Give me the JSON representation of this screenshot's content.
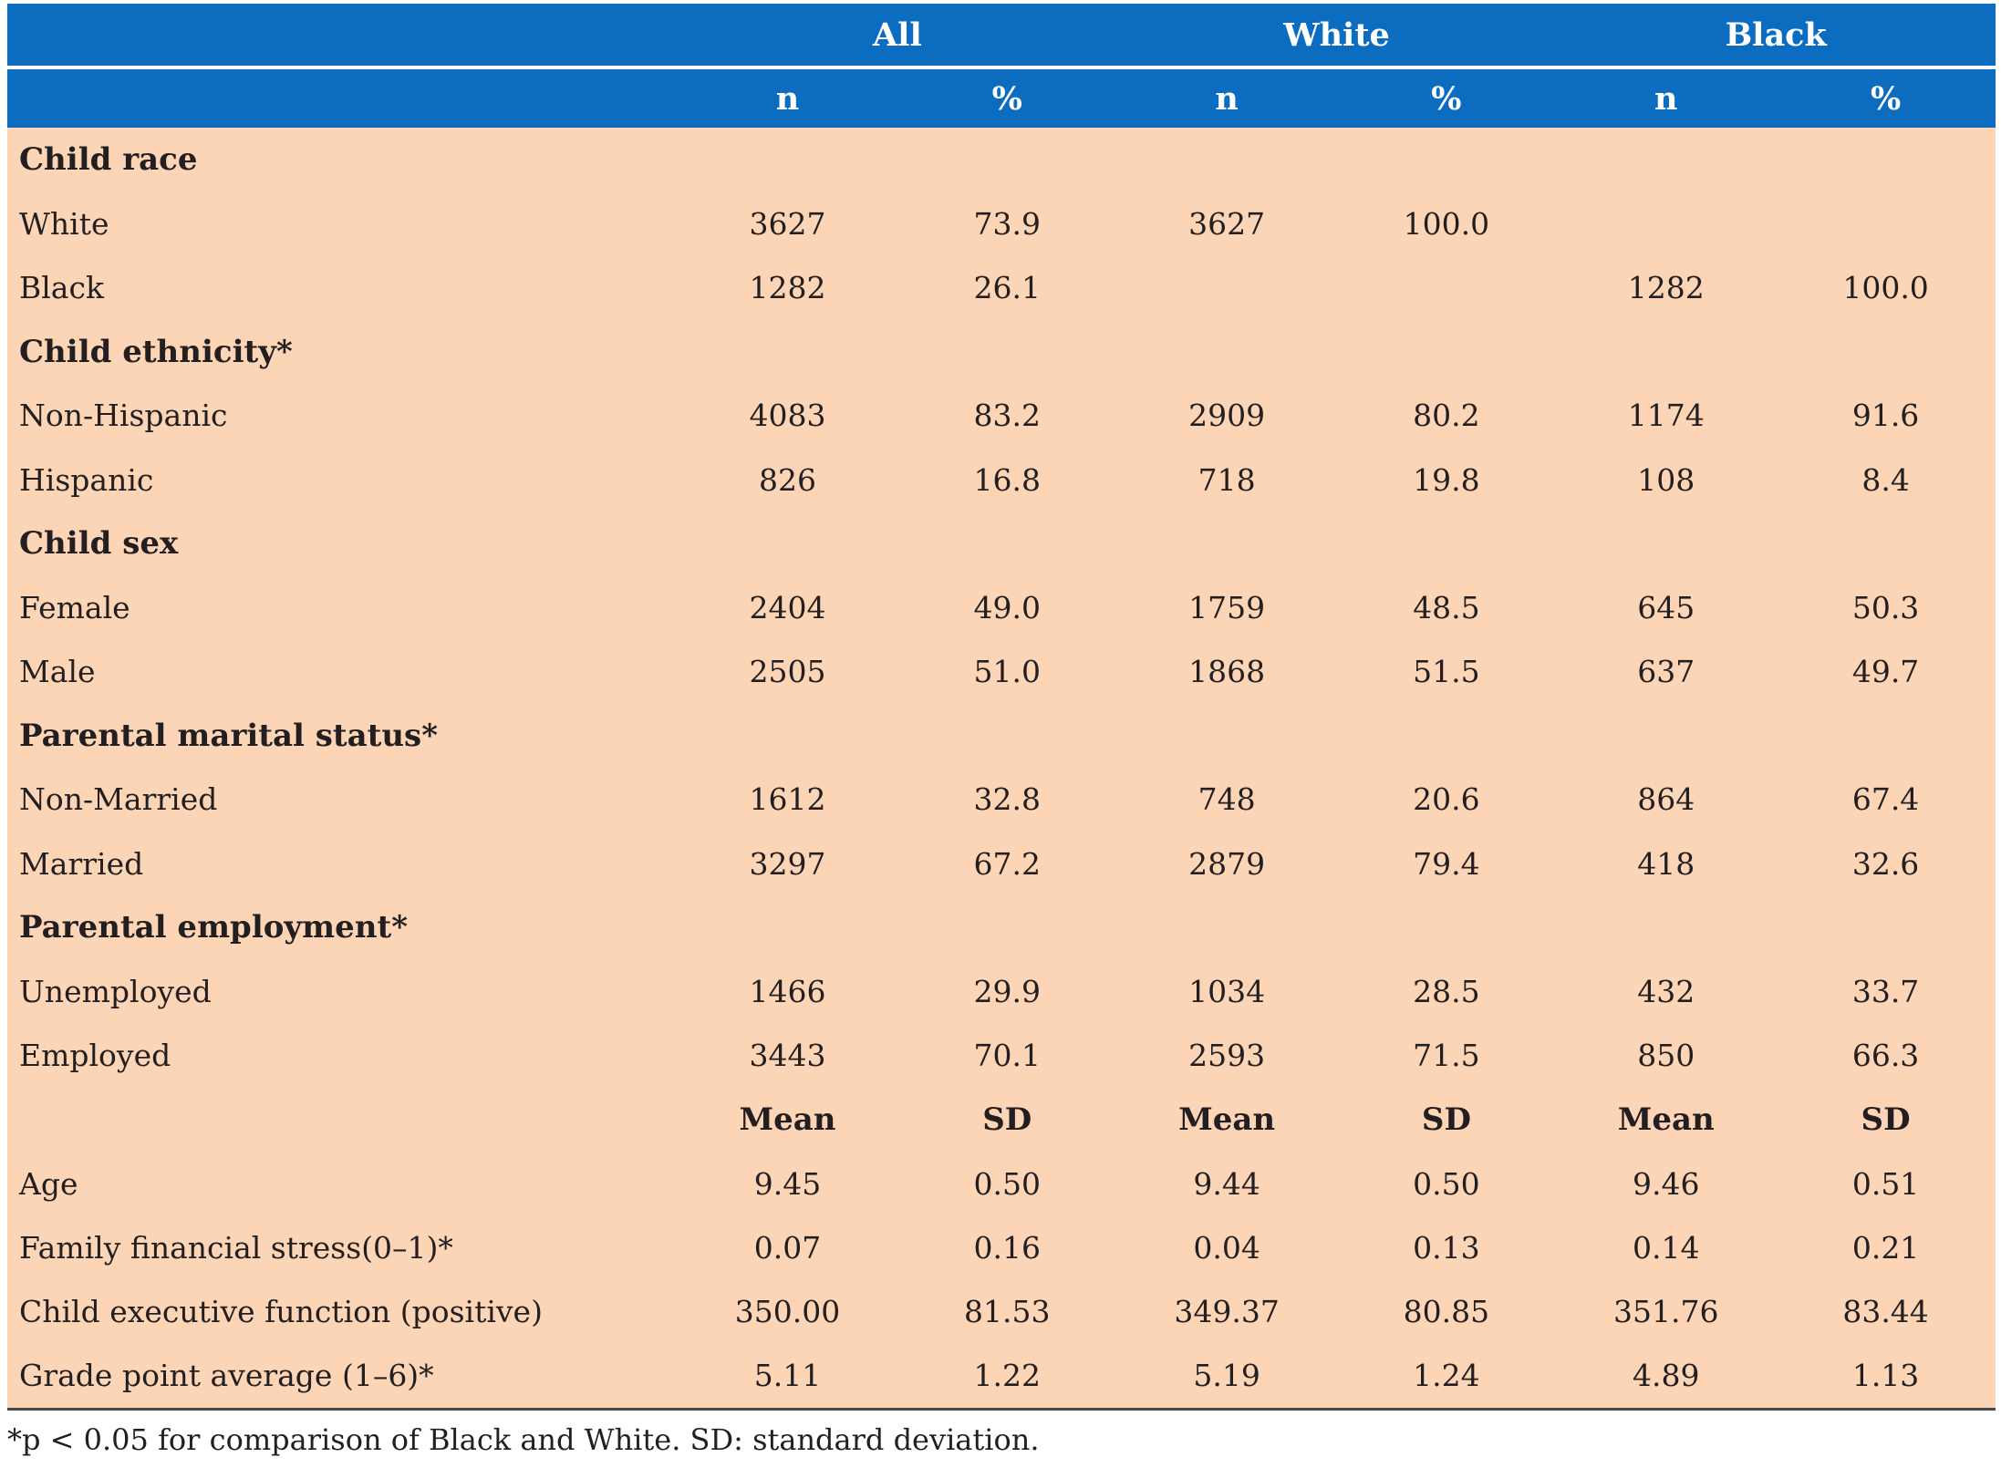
{
  "header": {
    "groups": [
      "All",
      "White",
      "Black"
    ],
    "subheaders": [
      "n",
      "%",
      "n",
      "%",
      "n",
      "%"
    ]
  },
  "sections": [
    {
      "title": "Child race",
      "rows": [
        {
          "label": "White",
          "values": [
            "3627",
            "73.9",
            "3627",
            "100.0",
            "",
            ""
          ]
        },
        {
          "label": "Black",
          "values": [
            "1282",
            "26.1",
            "",
            "",
            "1282",
            "100.0"
          ]
        }
      ]
    },
    {
      "title": "Child ethnicity*",
      "rows": [
        {
          "label": "Non-Hispanic",
          "values": [
            "4083",
            "83.2",
            "2909",
            "80.2",
            "1174",
            "91.6"
          ]
        },
        {
          "label": "Hispanic",
          "values": [
            "826",
            "16.8",
            "718",
            "19.8",
            "108",
            "8.4"
          ]
        }
      ]
    },
    {
      "title": "Child sex",
      "rows": [
        {
          "label": "Female",
          "values": [
            "2404",
            "49.0",
            "1759",
            "48.5",
            "645",
            "50.3"
          ]
        },
        {
          "label": "Male",
          "values": [
            "2505",
            "51.0",
            "1868",
            "51.5",
            "637",
            "49.7"
          ]
        }
      ]
    },
    {
      "title": "Parental marital status*",
      "rows": [
        {
          "label": "Non-Married",
          "values": [
            "1612",
            "32.8",
            "748",
            "20.6",
            "864",
            "67.4"
          ]
        },
        {
          "label": "Married",
          "values": [
            "3297",
            "67.2",
            "2879",
            "79.4",
            "418",
            "32.6"
          ]
        }
      ]
    },
    {
      "title": "Parental employment*",
      "rows": [
        {
          "label": "Unemployed",
          "values": [
            "1466",
            "29.9",
            "1034",
            "28.5",
            "432",
            "33.7"
          ]
        },
        {
          "label": "Employed",
          "values": [
            "3443",
            "70.1",
            "2593",
            "71.5",
            "850",
            "66.3"
          ]
        }
      ]
    }
  ],
  "stats_header": [
    "Mean",
    "SD",
    "Mean",
    "SD",
    "Mean",
    "SD"
  ],
  "stats": [
    {
      "label": "Age",
      "values": [
        "9.45",
        "0.50",
        "9.44",
        "0.50",
        "9.46",
        "0.51"
      ]
    },
    {
      "label": "Family financial stress(0–1)*",
      "values": [
        "0.07",
        "0.16",
        "0.04",
        "0.13",
        "0.14",
        "0.21"
      ]
    },
    {
      "label": "Child executive function (positive)",
      "values": [
        "350.00",
        "81.53",
        "349.37",
        "80.85",
        "351.76",
        "83.44"
      ]
    },
    {
      "label": "Grade point average (1–6)*",
      "values": [
        "5.11",
        "1.22",
        "5.19",
        "1.24",
        "4.89",
        "1.13"
      ]
    }
  ],
  "footnote": "*p < 0.05 for comparison of Black and White. SD: standard deviation.",
  "colors": {
    "header_bg": "#0c6cc0",
    "body_bg": "#fbd5b5"
  }
}
